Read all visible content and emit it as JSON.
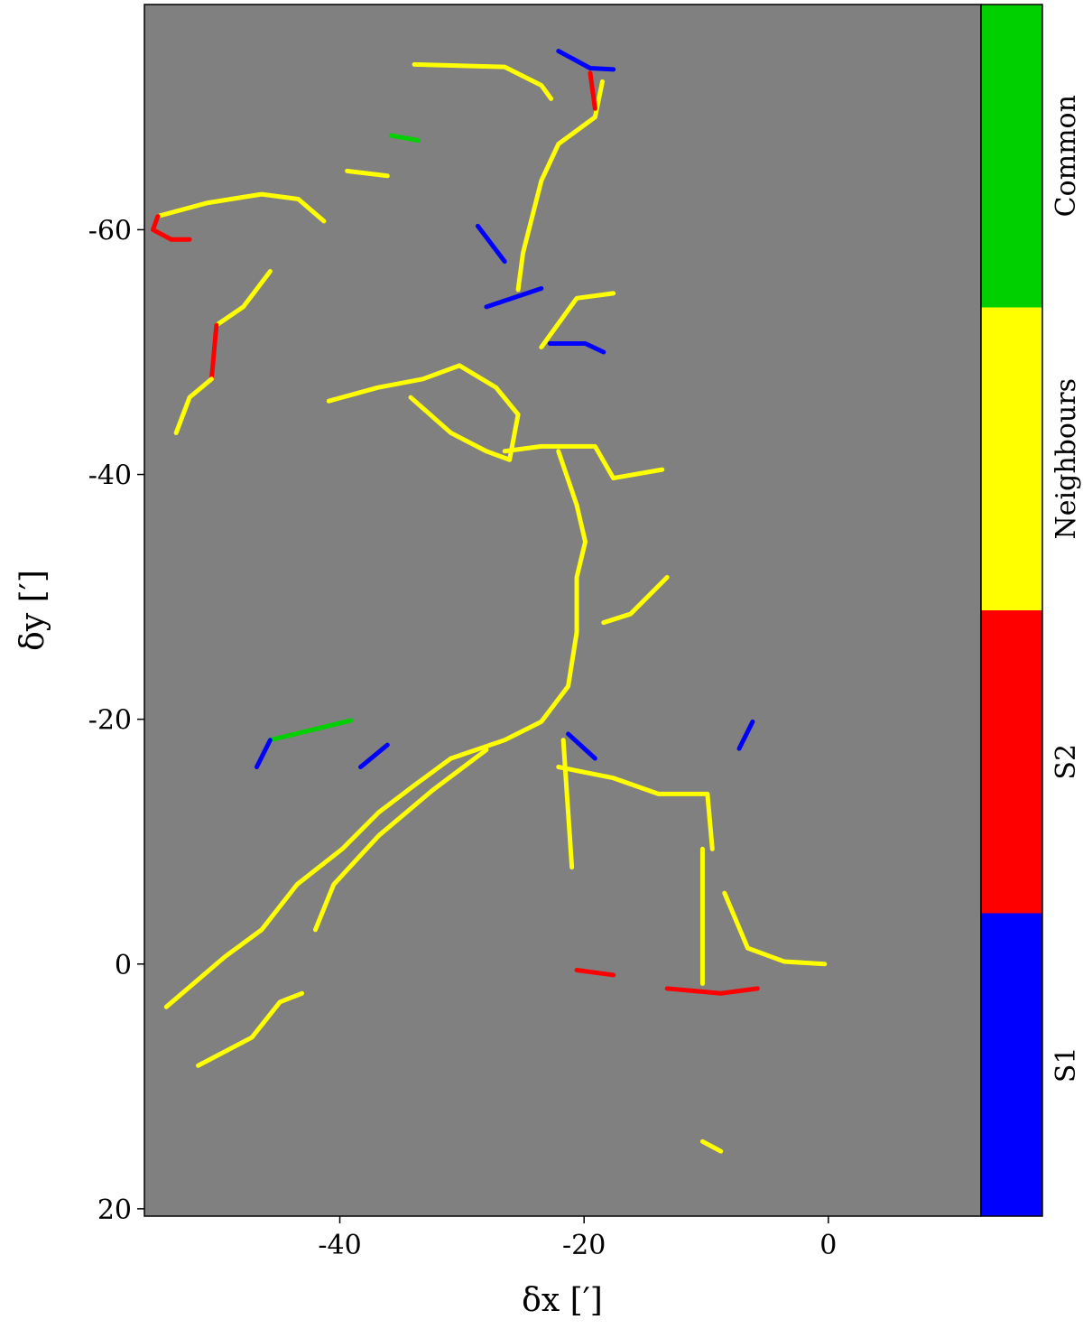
{
  "chart_data": {
    "type": "filament-map",
    "xlabel": "δx [′]",
    "ylabel": "δy [′]",
    "xlim": [
      -56,
      12.5
    ],
    "ylim": [
      20.6,
      -78.4
    ],
    "xticks": [
      -40,
      -20,
      0
    ],
    "yticks": [
      -60,
      -40,
      -20,
      0,
      20
    ],
    "background": "#808080",
    "colorbar": {
      "categories": [
        "S1",
        "S2",
        "Neighbours",
        "Common"
      ],
      "colors": [
        "#0000ff",
        "#ff0000",
        "#ffff00",
        "#00d000"
      ]
    },
    "filaments": [
      {
        "color": "#ffff00",
        "x": [
          -33.9,
          -26.5,
          -23.5,
          -22.7
        ],
        "y": [
          -73.5,
          -73.3,
          -71.8,
          -70.7
        ]
      },
      {
        "color": "#ffff00",
        "x": [
          -18.5,
          -19.1,
          -22.1,
          -23.5,
          -25,
          -25.4
        ],
        "y": [
          -72.1,
          -69.2,
          -67,
          -64,
          -58.1,
          -55.1
        ]
      },
      {
        "color": "#ff0000",
        "x": [
          -19.5,
          -19.1
        ],
        "y": [
          -72.8,
          -69.9
        ]
      },
      {
        "color": "#0000ff",
        "x": [
          -22.1,
          -19.5,
          -17.6
        ],
        "y": [
          -74.6,
          -73.2,
          -73.1
        ]
      },
      {
        "color": "#ffff00",
        "x": [
          -54.9,
          -50.8,
          -46.4,
          -43.4,
          -41.3
        ],
        "y": [
          -61.1,
          -62.2,
          -62.9,
          -62.5,
          -60.7
        ]
      },
      {
        "color": "#ff0000",
        "x": [
          -54.9,
          -55.3,
          -53.8,
          -52.3
        ],
        "y": [
          -61.1,
          -60,
          -59.2,
          -59.2
        ]
      },
      {
        "color": "#ffff00",
        "x": [
          -45.7,
          -47.9,
          -50.1
        ],
        "y": [
          -56.6,
          -53.7,
          -52.2
        ]
      },
      {
        "color": "#ff0000",
        "x": [
          -50.1,
          -50.5
        ],
        "y": [
          -52.2,
          -47.8
        ]
      },
      {
        "color": "#ffff00",
        "x": [
          -50.5,
          -52.3,
          -53.4
        ],
        "y": [
          -47.8,
          -46.3,
          -43.4
        ]
      },
      {
        "color": "#ffff00",
        "x": [
          -40.9,
          -36.9,
          -33.2,
          -30.2
        ],
        "y": [
          -46,
          -47.1,
          -47.8,
          -48.9
        ]
      },
      {
        "color": "#ffff00",
        "x": [
          -30.2,
          -27.2,
          -25.4,
          -26.1,
          -28,
          -30.9,
          -34.2
        ],
        "y": [
          -48.9,
          -47.1,
          -44.9,
          -41.2,
          -41.9,
          -43.4,
          -46.3
        ]
      },
      {
        "color": "#ffff00",
        "x": [
          -26.5,
          -23.5,
          -19.1,
          -17.6,
          -13.6
        ],
        "y": [
          -41.9,
          -42.3,
          -42.3,
          -39.7,
          -40.4
        ]
      },
      {
        "color": "#ffff00",
        "x": [
          -22.1,
          -20.6,
          -19.9,
          -20.6,
          -20.6,
          -21.3,
          -23.5,
          -26.5,
          -30.9
        ],
        "y": [
          -41.9,
          -37.5,
          -34.5,
          -31.6,
          -27.1,
          -22.7,
          -19.8,
          -18.3,
          -16.8
        ]
      },
      {
        "color": "#ffff00",
        "x": [
          -30.9,
          -33.9,
          -36.8,
          -39.8,
          -43.5,
          -46.4,
          -49.4,
          -54.2
        ],
        "y": [
          -16.8,
          -14.6,
          -12.4,
          -9.4,
          -6.5,
          -2.8,
          -0.6,
          3.5
        ]
      },
      {
        "color": "#ffff00",
        "x": [
          -28,
          -32.4,
          -36.8,
          -40.5,
          -42
        ],
        "y": [
          -17.5,
          -14.2,
          -10.5,
          -6.5,
          -2.8
        ]
      },
      {
        "color": "#00d000",
        "x": [
          -45.7,
          -39.1
        ],
        "y": [
          -18.3,
          -19.9
        ]
      },
      {
        "color": "#0000ff",
        "x": [
          -46.8,
          -45.7
        ],
        "y": [
          -16.1,
          -18.3
        ]
      },
      {
        "color": "#ffff00",
        "x": [
          -22.1,
          -17.6,
          -13.9,
          -9.9,
          -9.5
        ],
        "y": [
          -16.1,
          -15.2,
          -13.9,
          -13.9,
          -9.4
        ]
      },
      {
        "color": "#ffff00",
        "x": [
          -21.7,
          -21
        ],
        "y": [
          -18.3,
          -7.9
        ]
      },
      {
        "color": "#ffff00",
        "x": [
          -10.3,
          -10.3
        ],
        "y": [
          -9.4,
          1.6
        ]
      },
      {
        "color": "#ffff00",
        "x": [
          -8.5,
          -6.6,
          -3.6,
          -0.3
        ],
        "y": [
          -5.8,
          -1.3,
          -0.2,
          0
        ]
      },
      {
        "color": "#0000ff",
        "x": [
          -21.3,
          -19.1
        ],
        "y": [
          -18.8,
          -16.8
        ]
      },
      {
        "color": "#0000ff",
        "x": [
          -28.7,
          -26.5
        ],
        "y": [
          -60.3,
          -57.4
        ]
      },
      {
        "color": "#0000ff",
        "x": [
          -28,
          -23.5
        ],
        "y": [
          -53.7,
          -55.2
        ]
      },
      {
        "color": "#0000ff",
        "x": [
          -22.8,
          -19.9,
          -18.4
        ],
        "y": [
          -50.7,
          -50.7,
          -50
        ]
      },
      {
        "color": "#ffff00",
        "x": [
          -23.5,
          -20.6,
          -17.6
        ],
        "y": [
          -50.4,
          -54.4,
          -54.8
        ]
      },
      {
        "color": "#ffff00",
        "x": [
          -13.2,
          -16.2,
          -18.4
        ],
        "y": [
          -31.6,
          -28.6,
          -27.9
        ]
      },
      {
        "color": "#0000ff",
        "x": [
          -6.2,
          -7.3
        ],
        "y": [
          -19.8,
          -17.6
        ]
      },
      {
        "color": "#ff0000",
        "x": [
          -13.2,
          -8.8,
          -5.8
        ],
        "y": [
          2,
          2.4,
          2
        ]
      },
      {
        "color": "#ff0000",
        "x": [
          -20.6,
          -17.6
        ],
        "y": [
          0.5,
          0.9
        ]
      },
      {
        "color": "#0000ff",
        "x": [
          -36.1,
          -38.3
        ],
        "y": [
          -17.9,
          -16.1
        ]
      },
      {
        "color": "#ffff00",
        "x": [
          -51.6,
          -47.2,
          -44.9,
          -43.1
        ],
        "y": [
          8.3,
          6,
          3.1,
          2.4
        ]
      },
      {
        "color": "#ffff00",
        "x": [
          -10.3,
          -8.8
        ],
        "y": [
          14.5,
          15.3
        ]
      },
      {
        "color": "#00d000",
        "x": [
          -35.8,
          -33.6
        ],
        "y": [
          -67.7,
          -67.3
        ]
      },
      {
        "color": "#ffff00",
        "x": [
          -39.4,
          -36.1
        ],
        "y": [
          -64.8,
          -64.4
        ]
      }
    ]
  }
}
